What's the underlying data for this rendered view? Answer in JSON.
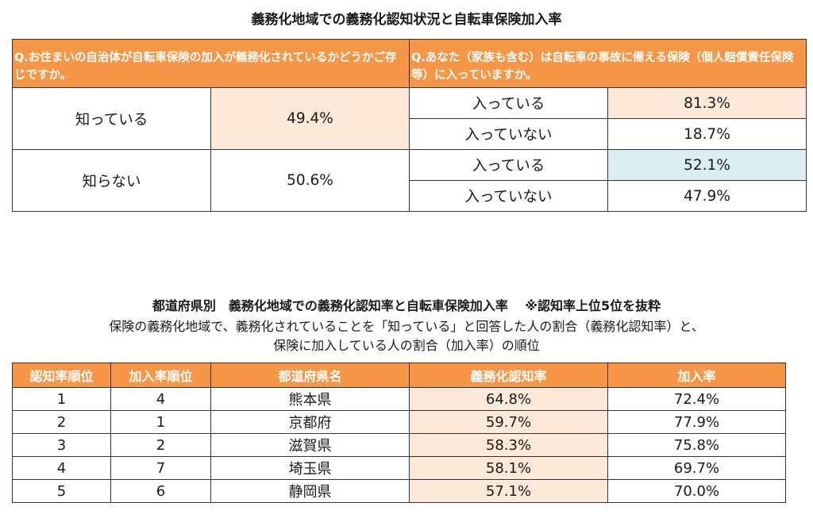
{
  "section1": {
    "title": "義務化地域での義務化認知状況と自転車保険加入率",
    "q_left": "Q.お住まいの自治体が自転車保険の加入が義務化されているかどうかご存じですか。",
    "q_right": "Q.あなた（家族も含む）は自転車の事故に備える保険（個人賠償責任保険等）に入っていますか。",
    "groups": [
      {
        "label": "知っている",
        "pct": "49.4%",
        "rows": [
          {
            "label": "入っている",
            "pct": "81.3%"
          },
          {
            "label": "入っていない",
            "pct": "18.7%"
          }
        ]
      },
      {
        "label": "知らない",
        "pct": "50.6%",
        "rows": [
          {
            "label": "入っている",
            "pct": "52.1%"
          },
          {
            "label": "入っていない",
            "pct": "47.9%"
          }
        ]
      }
    ]
  },
  "section2": {
    "title": "都道府県別　義務化地域での義務化認知率と自転車保険加入率　 ※認知率上位5位を抜粋",
    "desc1": "保険の義務化地域で、義務化されていることを「知っている」と回答した人の割合（義務化認知率）と、",
    "desc2": "保険に加入している人の割合（加入率）の順位",
    "headers": [
      "認知率順位",
      "加入率順位",
      "都道府県名",
      "義務化認知率",
      "加入率"
    ],
    "rows": [
      [
        "1",
        "4",
        "熊本県",
        "64.8%",
        "72.4%"
      ],
      [
        "2",
        "1",
        "京都府",
        "59.7%",
        "77.9%"
      ],
      [
        "3",
        "2",
        "滋賀県",
        "58.3%",
        "75.8%"
      ],
      [
        "4",
        "7",
        "埼玉県",
        "58.1%",
        "69.7%"
      ],
      [
        "5",
        "6",
        "静岡県",
        "57.1%",
        "70.0%"
      ]
    ]
  },
  "colors": {
    "header_orange": "#f79646",
    "highlight_peach": "#fde9d9",
    "highlight_blue": "#daeef3"
  }
}
